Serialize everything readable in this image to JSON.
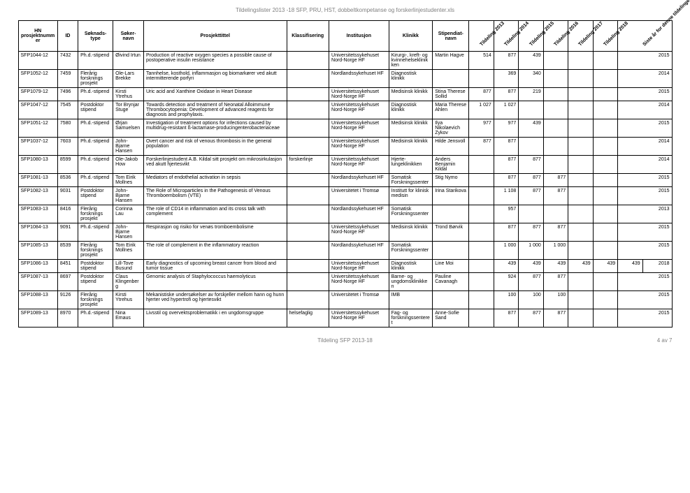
{
  "doc_title": "Tildelingslister 2013 -18 SFP, PRU, HST, dobbeltkompetanse og forskerlinjestudenter.xls",
  "headers": {
    "projnum": "HN prosjektnummer",
    "id": "ID",
    "soknadstype": "Søknads-type",
    "sokernavn": "Søker-navn",
    "prosjekttittel": "Prosjekttittel",
    "klassifisering": "Klassifisering",
    "institusjon": "Institusjon",
    "klinikk": "Klinikk",
    "stipendiatnavn": "Stipendiat-navn",
    "y2013": "Tildeling 2013",
    "y2014": "Tildeling 2014",
    "y2015": "Tildeling 2015",
    "y2016": "Tildeling 2016",
    "y2017": "Tildeling 2017",
    "y2018": "Tildeling 2018",
    "sisteaar": "Siste år for denne tildelingen"
  },
  "rows": [
    {
      "projnum": "SFP1044-12",
      "id": "7432",
      "sokt": "Ph.d.-stipend",
      "sokn": "Øivind Irtun",
      "title": "Production of reactive oxygen species a possible cause of postoperative insulin resistance",
      "klass": "",
      "inst": "Universitetssykehuset Nord-Norge HF",
      "klin": "Kirurgi-, kreft- og kvinnehelseklinikken",
      "stip": "Martin Hagve",
      "y2013": "514",
      "y2014": "877",
      "y2015": "439",
      "y2016": "",
      "y2017": "",
      "y2018": "",
      "last": "2015"
    },
    {
      "projnum": "SFP1052-12",
      "id": "7459",
      "sokt": "Flerårig forsknings prosjekt",
      "sokn": "Ole-Lars Brekke",
      "title": "Tannhelse, kosthold, inflammasjon og biomarkører ved akutt intermitterende porfyri",
      "klass": "",
      "inst": "Nordlandssykehuset HF",
      "klin": "Diagnostisk klinikk",
      "stip": "",
      "y2013": "",
      "y2014": "369",
      "y2015": "340",
      "y2016": "",
      "y2017": "",
      "y2018": "",
      "last": "2014"
    },
    {
      "projnum": "SFP1079-12",
      "id": "7496",
      "sokt": "Ph.d.-stipend",
      "sokn": "Kirsti Ytrehus",
      "title": "Uric acid and Xanthine Oxidase in Heart Disease",
      "klass": "",
      "inst": "Universitetssykehuset Nord-Norge HF",
      "klin": "Medisinsk klinikk",
      "stip": "Stina Therese Sollid",
      "y2013": "877",
      "y2014": "877",
      "y2015": "219",
      "y2016": "",
      "y2017": "",
      "y2018": "",
      "last": "2015"
    },
    {
      "projnum": "SFP1047-12",
      "id": "7545",
      "sokt": "Postdoktor stipend",
      "sokn": "Tor Brynjar Stuge",
      "title": "Towards detection and treatment of Neonatal Alloimmune Thrombocytopenia: Development of advanced reagents for diagnosis and prophylaxis.",
      "klass": "",
      "inst": "Universitetssykehuset Nord-Norge HF",
      "klin": "Diagnostisk klinikk",
      "stip": "Maria Therese Ahlen",
      "y2013": "1 027",
      "y2014": "1 027",
      "y2015": "",
      "y2016": "",
      "y2017": "",
      "y2018": "",
      "last": "2014"
    },
    {
      "projnum": "SFP1051-12",
      "id": "7580",
      "sokt": "Ph.d.-stipend",
      "sokn": "Ørjan Samuelsen",
      "title": "Investigation of treatment options for infections caused by multidrug-resistant ß-lactamase-producingenterobacteriaceae",
      "klass": "",
      "inst": "Universitetssykehuset Nord-Norge HF",
      "klin": "Medisinsk klinikk",
      "stip": "Ilya Nikolaevich Zykov",
      "y2013": "977",
      "y2014": "977",
      "y2015": "439",
      "y2016": "",
      "y2017": "",
      "y2018": "",
      "last": "2015"
    },
    {
      "projnum": "SFP1037-12",
      "id": "7603",
      "sokt": "Ph.d.-stipend",
      "sokn": "John-Bjarne Hansen",
      "title": "Overt cancer and risk of venous thrombosis in the general population",
      "klass": "",
      "inst": "Universitetssykehuset Nord-Norge HF",
      "klin": "Medisinsk klinikk",
      "stip": "Hilde Jensvoll",
      "y2013": "877",
      "y2014": "877",
      "y2015": "",
      "y2016": "",
      "y2017": "",
      "y2018": "",
      "last": "2014"
    },
    {
      "projnum": "SFP1080-13",
      "id": "8599",
      "sokt": "Ph.d.-stipend",
      "sokn": "Ole-Jakob How",
      "title": "Forskerlinjestudent A.B. Kildal sitt prosjekt om mikrosirkulasjon ved akutt hjertesvikt",
      "klass": "forskerlinje",
      "inst": "Universitetssykehuset Nord-Norge HF",
      "klin": "Hjerte-lungeklinikken",
      "stip": "Anders Benjamin Kildal",
      "y2013": "",
      "y2014": "877",
      "y2015": "877",
      "y2016": "",
      "y2017": "",
      "y2018": "",
      "last": "2014"
    },
    {
      "projnum": "SFP1081-13",
      "id": "8536",
      "sokt": "Ph.d.-stipend",
      "sokn": "Tom Eirik Mollnes",
      "title": "Mediators of endothelial activation in sepsis",
      "klass": "",
      "inst": "Nordlandssykehuset HF",
      "klin": "Somatisk Forskningssenter",
      "stip": "Stig Nymo",
      "y2013": "",
      "y2014": "877",
      "y2015": "877",
      "y2016": "877",
      "y2017": "",
      "y2018": "",
      "last": "2015"
    },
    {
      "projnum": "SFP1082-13",
      "id": "9031",
      "sokt": "Postdoktor stipend",
      "sokn": "John-Bjarne Hansen",
      "title": "The Role of Microparticles in the Pathogenesis of Venous Thromboembolism (VTE)",
      "klass": "",
      "inst": "Universitetet i Tromsø",
      "klin": "Institutt for klinisk medisin",
      "stip": "Irina Starikova",
      "y2013": "",
      "y2014": "1 108",
      "y2015": "877",
      "y2016": "877",
      "y2017": "",
      "y2018": "",
      "last": "2015"
    },
    {
      "projnum": "SFP1083-13",
      "id": "8416",
      "sokt": "Flerårig forsknings prosjekt",
      "sokn": "Corinna Lau",
      "title": "The role of CD14 in inflammation and its cross talk with complement",
      "klass": "",
      "inst": "Nordlandssykehuset HF",
      "klin": "Somatisk Forskningssenter",
      "stip": "",
      "y2013": "",
      "y2014": "957",
      "y2015": "",
      "y2016": "",
      "y2017": "",
      "y2018": "",
      "last": "2013"
    },
    {
      "projnum": "SFP1084-13",
      "id": "9091",
      "sokt": "Ph.d.-stipend",
      "sokn": "John-Bjarne Hansen",
      "title": "Respirasjon og risiko for venøs tromboembolisme",
      "klass": "",
      "inst": "Universitetssykehuset Nord-Norge HF",
      "klin": "Medisinsk klinikk",
      "stip": "Trond Børvik",
      "y2013": "",
      "y2014": "877",
      "y2015": "877",
      "y2016": "877",
      "y2017": "",
      "y2018": "",
      "last": "2015"
    },
    {
      "projnum": "SFP1085-13",
      "id": "8539",
      "sokt": "Flerårig forsknings prosjekt",
      "sokn": "Tom Eirik Mollnes",
      "title": "The role of complement in the inflammatory reaction",
      "klass": "",
      "inst": "Nordlandssykehuset HF",
      "klin": "Somatisk Forskningssenter",
      "stip": "",
      "y2013": "",
      "y2014": "1 000",
      "y2015": "1 000",
      "y2016": "1 000",
      "y2017": "",
      "y2018": "",
      "last": "2015"
    },
    {
      "projnum": "SFP1086-13",
      "id": "8451",
      "sokt": "Postdoktor stipend",
      "sokn": "Lill-Tove Busund",
      "title": "Early diagnostics of upcoming breast cancer from blood and tumor tissue",
      "klass": "",
      "inst": "Universitetssykehuset Nord-Norge HF",
      "klin": "Diagnostisk klinikk",
      "stip": "Line Moi",
      "y2013": "",
      "y2014": "439",
      "y2015": "439",
      "y2016": "439",
      "y2017": "439",
      "y2018": "439",
      "last": "439",
      "lastYearExtra": "2018"
    },
    {
      "projnum": "SFP1087-13",
      "id": "8697",
      "sokt": "Postdoktor stipend",
      "sokn": "Claus Klingenberg",
      "title": "Genomic analysis of Staphylococcus haemolyticus",
      "klass": "",
      "inst": "Universitetssykehuset Nord-Norge HF",
      "klin": "Barne- og ungdomsklinikken",
      "stip": "Pauline Cavanagh",
      "y2013": "",
      "y2014": "924",
      "y2015": "877",
      "y2016": "877",
      "y2017": "",
      "y2018": "",
      "last": "2015"
    },
    {
      "projnum": "SFP1088-13",
      "id": "9126",
      "sokt": "Flerårig forsknings prosjekt",
      "sokn": "Kirsti Ytrehus",
      "title": "Mekanistiske undersøkelser av forskjeller mellom hann og hunn hjerter ved hypertrofi og hjertesvikt",
      "klass": "",
      "inst": "Universitetet i Tromsø",
      "klin": "IMB",
      "stip": "",
      "y2013": "",
      "y2014": "100",
      "y2015": "100",
      "y2016": "100",
      "y2017": "",
      "y2018": "",
      "last": "2015"
    },
    {
      "projnum": "SFP1089-13",
      "id": "8970",
      "sokt": "Ph.d.-stipend",
      "sokn": "Nina Emaus",
      "title": "Livsstil og overvektsproblematikk i en ungdomsgruppe",
      "klass": "helsefaglig",
      "inst": "Universitetssykehuset Nord-Norge HF",
      "klin": "Fag- og forskningssenteret",
      "stip": "Anne-Sofie Sand",
      "y2013": "",
      "y2014": "877",
      "y2015": "877",
      "y2016": "877",
      "y2017": "",
      "y2018": "",
      "last": "2015"
    }
  ],
  "footer_center": "Tildeling SFP 2013-18",
  "footer_right": "4 av 7"
}
